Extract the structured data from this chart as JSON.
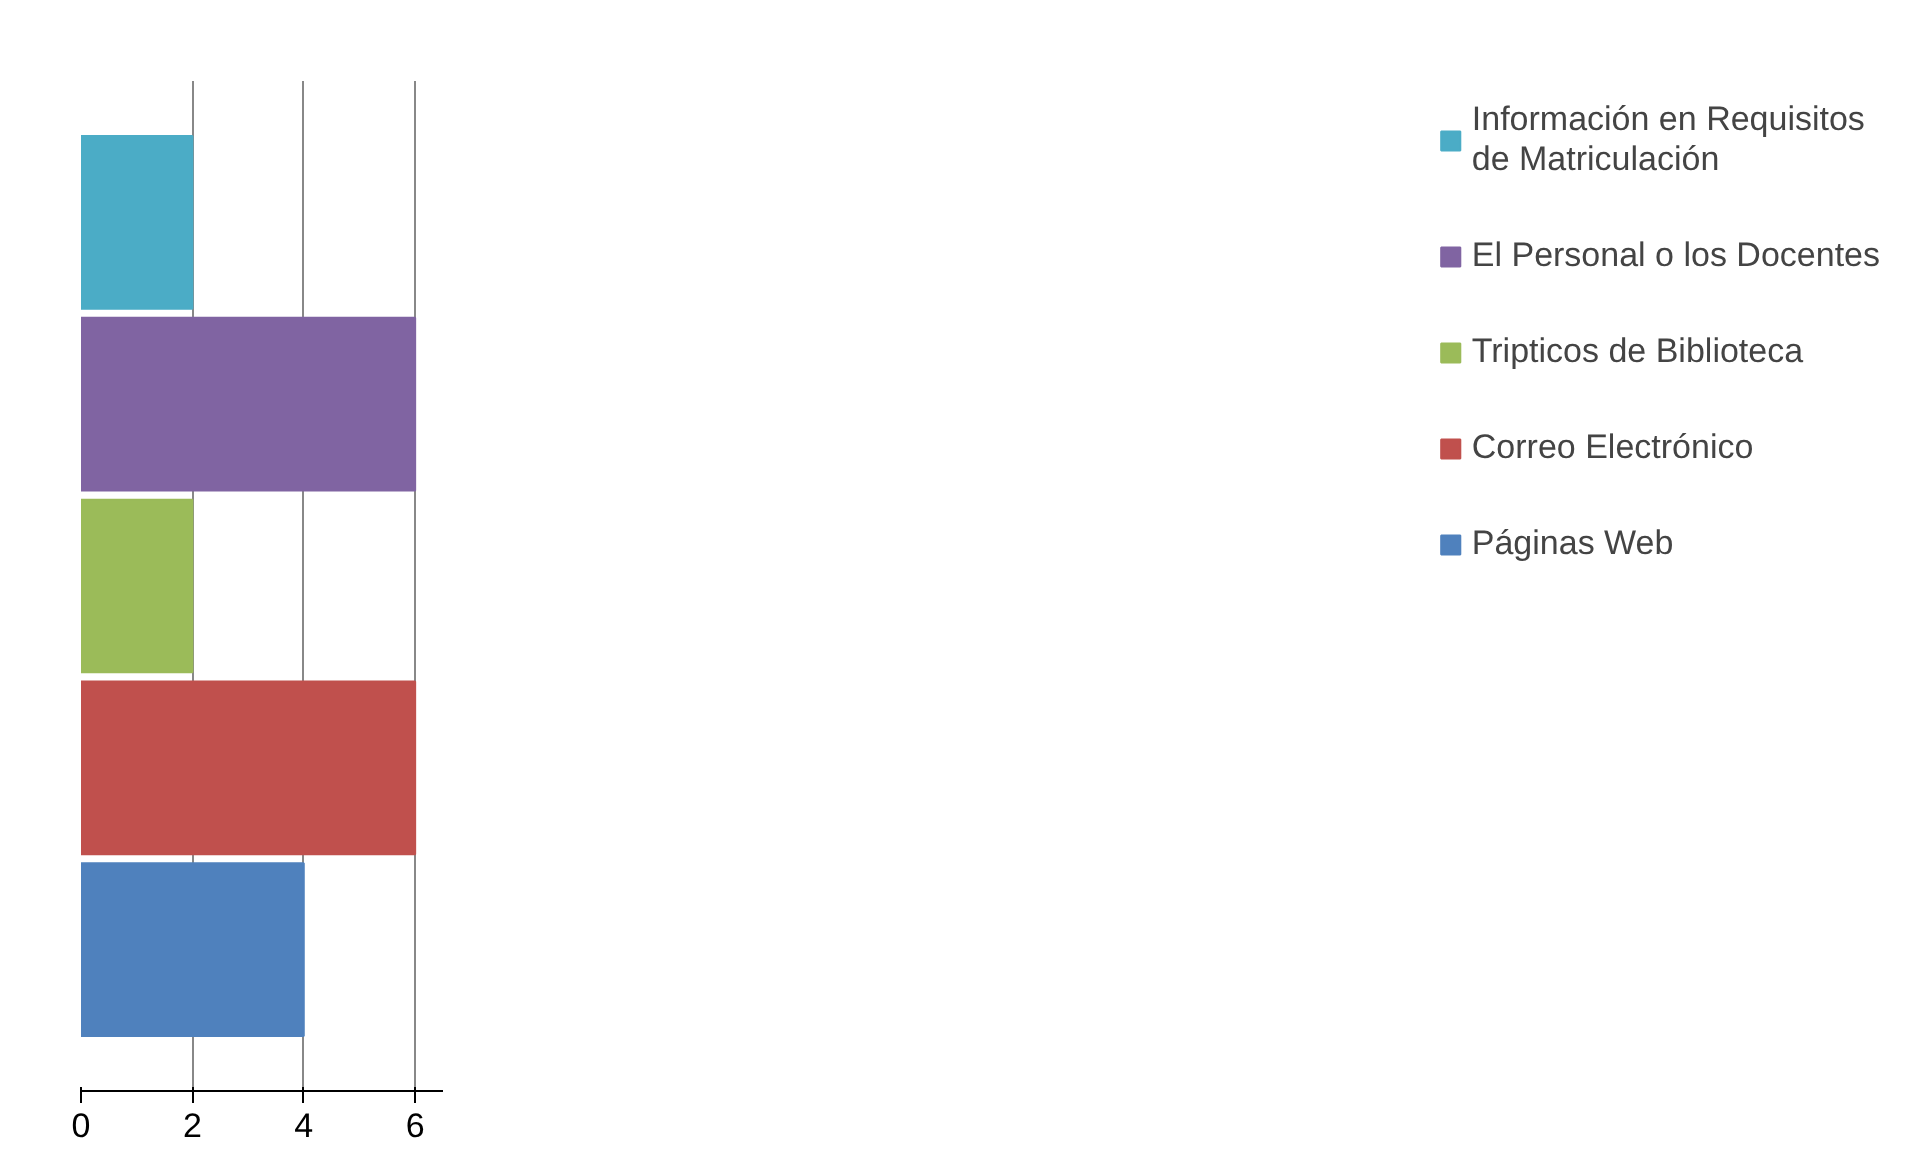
{
  "chart_data": {
    "type": "bar",
    "orientation": "horizontal",
    "categories": [
      null
    ],
    "series": [
      {
        "name": "Páginas Web",
        "color": "#4f81bd",
        "values": [
          4
        ]
      },
      {
        "name": "Correo Electrónico",
        "color": "#c0504d",
        "values": [
          6
        ]
      },
      {
        "name": "Tripticos de Biblioteca",
        "color": "#9bbb59",
        "values": [
          2
        ]
      },
      {
        "name": "El Personal o los Docentes",
        "color": "#8064a2",
        "values": [
          6
        ]
      },
      {
        "name": "Información en Requisitos de Matriculación",
        "color": "#4bacc6",
        "values": [
          2
        ]
      }
    ],
    "xlim": [
      0,
      6.5
    ],
    "xticks": [
      0,
      2,
      4,
      6
    ],
    "grid": "x",
    "legend": "right",
    "tick_labels": "x"
  }
}
